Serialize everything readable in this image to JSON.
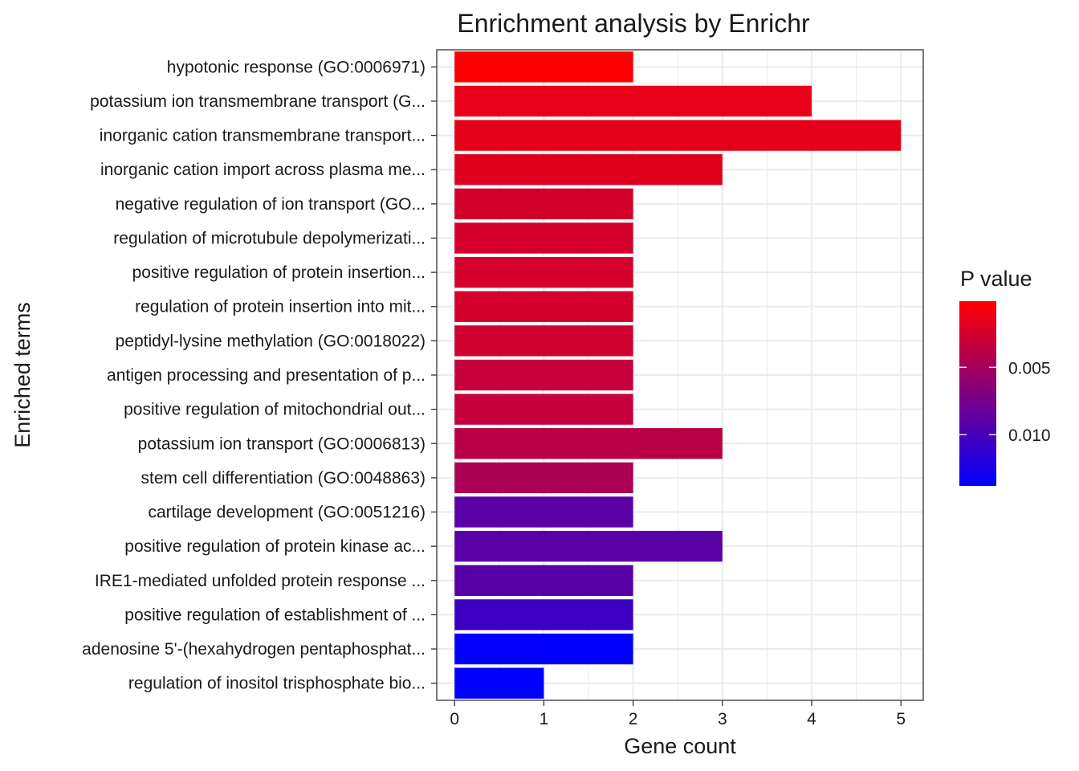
{
  "chart_data": {
    "type": "bar",
    "orientation": "horizontal",
    "title": "Enrichment analysis by Enrichr",
    "xlabel": "Gene count",
    "ylabel": "Enriched terms",
    "xlim": [
      -0.2,
      5.25
    ],
    "x_ticks": [
      0,
      1,
      2,
      3,
      4,
      5
    ],
    "grid": true,
    "legend": {
      "title": "P value",
      "position": "right",
      "ticks": [
        0.005,
        0.01
      ],
      "tick_labels": [
        "0.005",
        "0.010"
      ],
      "range": [
        0.0001,
        0.0138
      ],
      "low_color": "#ff0000",
      "high_color": "#0000ff"
    },
    "categories": [
      "hypotonic response (GO:0006971)",
      "potassium ion transmembrane transport (G...",
      "inorganic cation transmembrane transport...",
      "inorganic cation import across plasma me...",
      "negative regulation of ion transport (GO...",
      "regulation of microtubule depolymerizati...",
      "positive regulation of protein insertion...",
      "regulation of protein insertion into mit...",
      "peptidyl-lysine methylation (GO:0018022)",
      "antigen processing and presentation of p...",
      "positive regulation of mitochondrial out...",
      "potassium ion transport (GO:0006813)",
      "stem cell differentiation (GO:0048863)",
      "cartilage development (GO:0051216)",
      "positive regulation of protein kinase ac...",
      "IRE1-mediated unfolded protein response ...",
      "positive regulation of establishment of ...",
      "adenosine 5'-(hexahydrogen pentaphosphat...",
      "regulation of inositol trisphosphate bio..."
    ],
    "values": [
      2,
      4,
      5,
      3,
      2,
      2,
      2,
      2,
      2,
      2,
      2,
      3,
      2,
      2,
      3,
      2,
      2,
      2,
      1
    ],
    "p_values": [
      0.0002,
      0.0014,
      0.0015,
      0.0018,
      0.0024,
      0.0024,
      0.0024,
      0.0024,
      0.0026,
      0.0032,
      0.0032,
      0.0038,
      0.0046,
      0.009,
      0.009,
      0.0091,
      0.0105,
      0.0137,
      0.0137
    ]
  }
}
